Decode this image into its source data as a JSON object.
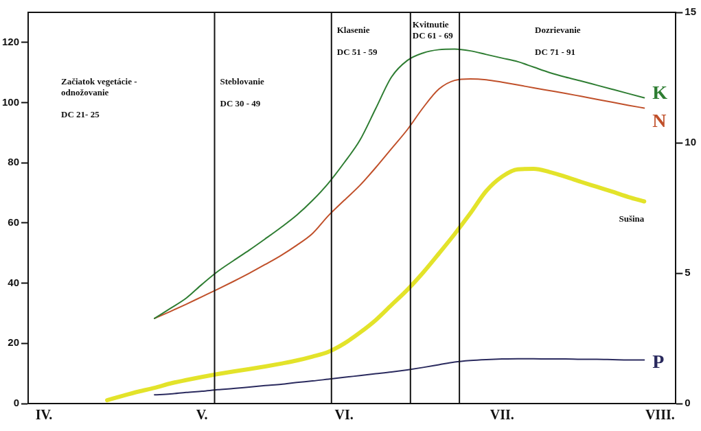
{
  "chart_data": {
    "type": "line",
    "categories": [
      null,
      "IV.",
      null,
      null,
      null,
      null,
      null,
      null,
      null,
      null,
      null,
      "V.",
      null,
      null,
      null,
      null,
      null,
      null,
      null,
      null,
      "VI.",
      null,
      null,
      null,
      null,
      null,
      null,
      null,
      null,
      null,
      "VII.",
      null,
      null,
      null,
      null,
      null,
      null,
      null,
      null,
      null,
      "VIII.",
      null
    ],
    "ylim": [
      0,
      130
    ],
    "yticks": [
      0,
      20,
      40,
      60,
      80,
      100,
      120
    ],
    "y2lim": [
      0,
      15
    ],
    "y2ticks": [
      0,
      5,
      10,
      15
    ],
    "grid": false,
    "legend": false,
    "marker": "none",
    "line_style": "solid",
    "annotations": [
      "Začiatok vegetácie -\nodnožovanie\n\nDC 21- 25",
      "Steblovanie\n\nDC 30 - 49",
      "Klasenie\n\nDC 51 - 59",
      "Kvitnutie\nDC 61 - 69",
      "Dozrievanie\n\nDC 71 - 91"
    ],
    "series": [
      {
        "name": "K",
        "color": "#2e7d32",
        "values": [
          null,
          null,
          null,
          null,
          null,
          null,
          null,
          null,
          28.3,
          31.6,
          35,
          39.6,
          43.9,
          47.5,
          51,
          54.7,
          58.5,
          62.6,
          67.5,
          73.2,
          80,
          87.5,
          98,
          108.5,
          114,
          116.5,
          117.6,
          117.8,
          117.2,
          116,
          114.8,
          113.6,
          111.8,
          110,
          108.5,
          107.2,
          105.8,
          104.4,
          103,
          101.6,
          null,
          null
        ]
      },
      {
        "name": "N",
        "color": "#c0502a",
        "values": [
          null,
          null,
          null,
          null,
          null,
          null,
          null,
          null,
          28.3,
          30.6,
          33,
          35.5,
          38,
          40.6,
          43.3,
          46.2,
          49.2,
          52.6,
          56.5,
          62.4,
          67.5,
          72.5,
          78.4,
          84.7,
          91,
          98.3,
          104.5,
          107.4,
          107.9,
          107.6,
          106.8,
          105.9,
          104.9,
          104,
          103.1,
          102.1,
          101.1,
          100.1,
          99.1,
          98.2,
          null,
          null
        ]
      },
      {
        "name": "Sušina",
        "color": "#e3e32a",
        "axis": "y2",
        "values": [
          null,
          null,
          null,
          null,
          null,
          0.13,
          0.3,
          0.46,
          0.6,
          0.77,
          0.9,
          1.02,
          1.13,
          1.23,
          1.32,
          1.42,
          1.53,
          1.65,
          1.8,
          1.98,
          2.3,
          2.72,
          3.2,
          3.78,
          4.36,
          5.02,
          5.75,
          6.5,
          7.3,
          8.15,
          8.7,
          8.98,
          9,
          8.88,
          8.7,
          8.5,
          8.31,
          8.12,
          7.92,
          7.75,
          null,
          null
        ]
      },
      {
        "name": "P",
        "color": "#2a2a5e",
        "values": [
          null,
          null,
          null,
          null,
          null,
          null,
          null,
          null,
          2.9,
          3.2,
          3.7,
          4.1,
          4.6,
          5,
          5.5,
          6,
          6.4,
          7,
          7.5,
          8.1,
          8.7,
          9.3,
          9.9,
          10.5,
          11.2,
          12,
          12.9,
          13.8,
          14.3,
          14.6,
          14.8,
          14.9,
          14.9,
          14.8,
          14.8,
          14.7,
          14.7,
          14.6,
          14.5,
          14.5,
          null,
          null
        ]
      }
    ]
  }
}
